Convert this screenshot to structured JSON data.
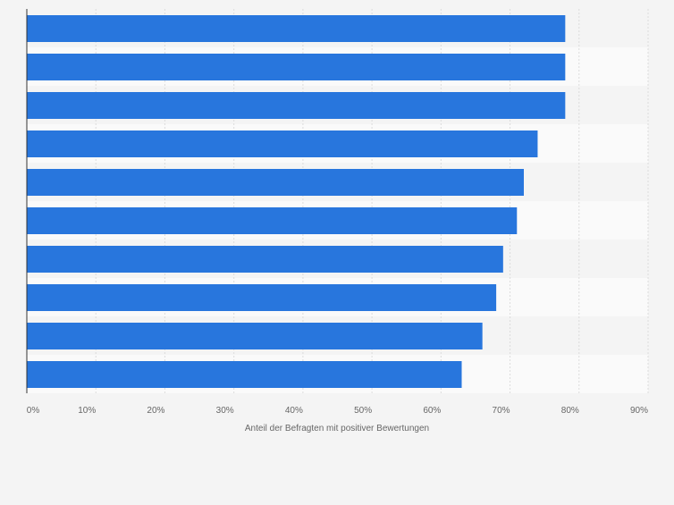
{
  "chart_data": {
    "type": "bar",
    "orientation": "horizontal",
    "categories": [
      "",
      "",
      "",
      "",
      "",
      "",
      "",
      "",
      "",
      ""
    ],
    "values": [
      78,
      78,
      78,
      74,
      72,
      71,
      69,
      68,
      66,
      63
    ],
    "xlabel": "Anteil der Befragten mit positiver Bewertungen",
    "ylabel": "",
    "xlim": [
      0,
      90
    ],
    "xticks": [
      "0%",
      "10%",
      "20%",
      "30%",
      "40%",
      "50%",
      "60%",
      "70%",
      "80%",
      "90%"
    ],
    "grid": true,
    "bar_color": "#2876dd",
    "band_colors": [
      "#f4f4f4",
      "#fafafa"
    ],
    "gridline_color": "#dcdcdc",
    "axis_color": "#333333",
    "tick_label_color": "#666666"
  }
}
